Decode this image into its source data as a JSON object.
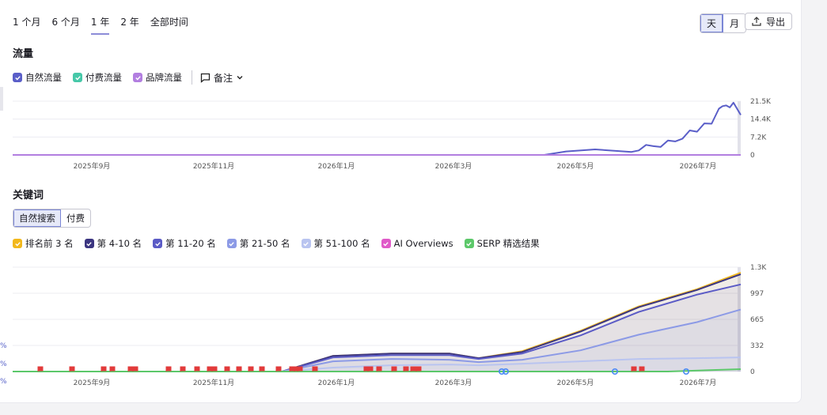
{
  "range_tabs": [
    "1 个月",
    "6 个月",
    "1 年",
    "2 年",
    "全部时间"
  ],
  "range_active_index": 2,
  "granularity": {
    "day": "天",
    "month": "月",
    "active": "day"
  },
  "export_label": "导出",
  "traffic": {
    "title": "流量",
    "legend": [
      {
        "label": "自然流量",
        "color": "#5a5ec8"
      },
      {
        "label": "付费流量",
        "color": "#46c8a8"
      },
      {
        "label": "品牌流量",
        "color": "#b27ee0"
      }
    ],
    "note_label": "备注"
  },
  "keywords": {
    "title": "关键词",
    "tabs": [
      "自然搜索",
      "付费"
    ],
    "active_tab": 0,
    "legend": [
      {
        "label": "排名前 3 名",
        "color": "#f2b81c"
      },
      {
        "label": "第 4-10 名",
        "color": "#3b3580"
      },
      {
        "label": "第 11-20 名",
        "color": "#5b5bc6"
      },
      {
        "label": "第 21-50 名",
        "color": "#8c9ae6"
      },
      {
        "label": "第 51-100 名",
        "color": "#b9c4f0"
      },
      {
        "label": "AI Overviews",
        "color": "#e05ac8"
      },
      {
        "label": "SERP 精选结果",
        "color": "#5cc86a"
      }
    ]
  },
  "chart_data": [
    {
      "type": "line",
      "x_ticks": [
        "2025年9月",
        "2025年11月",
        "2026年1月",
        "2026年3月",
        "2026年5月",
        "2026年7月"
      ],
      "y_ticks": [
        "21.5K",
        "14.4K",
        "7.2K",
        "0"
      ],
      "ylim": [
        0,
        21500
      ],
      "grid": true,
      "series": [
        {
          "name": "自然流量",
          "color": "#5a5ec8",
          "x": [
            0.0,
            0.73,
            0.76,
            0.8,
            0.85,
            0.86,
            0.87,
            0.88,
            0.89,
            0.9,
            0.91,
            0.92,
            0.93,
            0.94,
            0.95,
            0.96,
            0.97,
            0.975,
            0.98,
            0.985,
            0.99,
            1.0
          ],
          "values": [
            0,
            0,
            1400,
            2200,
            1200,
            1800,
            4000,
            3500,
            3200,
            5800,
            5400,
            6500,
            9800,
            9300,
            12600,
            12500,
            18500,
            19500,
            19800,
            19000,
            20900,
            16000
          ]
        },
        {
          "name": "品牌流量",
          "color": "#b27ee0",
          "x": [
            0.0,
            1.0
          ],
          "values": [
            0,
            0
          ]
        }
      ]
    },
    {
      "type": "area",
      "x_ticks": [
        "2025年9月",
        "2025年11月",
        "2026年1月",
        "2026年3月",
        "2026年5月",
        "2026年7月"
      ],
      "y_ticks": [
        "1.3K",
        "997",
        "665",
        "332",
        "0"
      ],
      "ylim": [
        0,
        1330
      ],
      "grid": true,
      "series": [
        {
          "name": "排名前 3 名",
          "color": "#f2b81c",
          "x": [
            0.0,
            0.37,
            0.44,
            0.52,
            0.6,
            0.64,
            0.7,
            0.78,
            0.86,
            0.94,
            1.0
          ],
          "values": [
            0,
            0,
            200,
            230,
            230,
            170,
            260,
            520,
            830,
            1050,
            1260
          ]
        },
        {
          "name": "第 4-10 名",
          "color": "#3b3580",
          "x": [
            0.0,
            0.37,
            0.44,
            0.52,
            0.6,
            0.64,
            0.7,
            0.78,
            0.86,
            0.94,
            1.0
          ],
          "values": [
            0,
            0,
            200,
            230,
            230,
            170,
            250,
            510,
            820,
            1040,
            1240
          ]
        },
        {
          "name": "第 11-20 名",
          "color": "#5b5bc6",
          "x": [
            0.0,
            0.37,
            0.44,
            0.52,
            0.6,
            0.64,
            0.7,
            0.78,
            0.86,
            0.94,
            1.0
          ],
          "values": [
            0,
            0,
            180,
            210,
            210,
            160,
            230,
            460,
            760,
            980,
            1110
          ]
        },
        {
          "name": "第 21-50 名",
          "color": "#8c9ae6",
          "x": [
            0.0,
            0.37,
            0.44,
            0.52,
            0.6,
            0.64,
            0.7,
            0.78,
            0.86,
            0.94,
            1.0
          ],
          "values": [
            0,
            0,
            130,
            160,
            150,
            120,
            150,
            270,
            470,
            630,
            790
          ]
        },
        {
          "name": "第 51-100 名",
          "color": "#b9c4f0",
          "x": [
            0.0,
            0.37,
            0.44,
            0.52,
            0.6,
            0.64,
            0.7,
            0.78,
            0.86,
            0.94,
            1.0
          ],
          "values": [
            0,
            0,
            50,
            80,
            90,
            80,
            100,
            130,
            160,
            170,
            180
          ]
        },
        {
          "name": "SERP 精选结果",
          "color": "#5cc86a",
          "x": [
            0.0,
            0.9,
            1.0
          ],
          "values": [
            0,
            0,
            30
          ]
        }
      ]
    }
  ]
}
